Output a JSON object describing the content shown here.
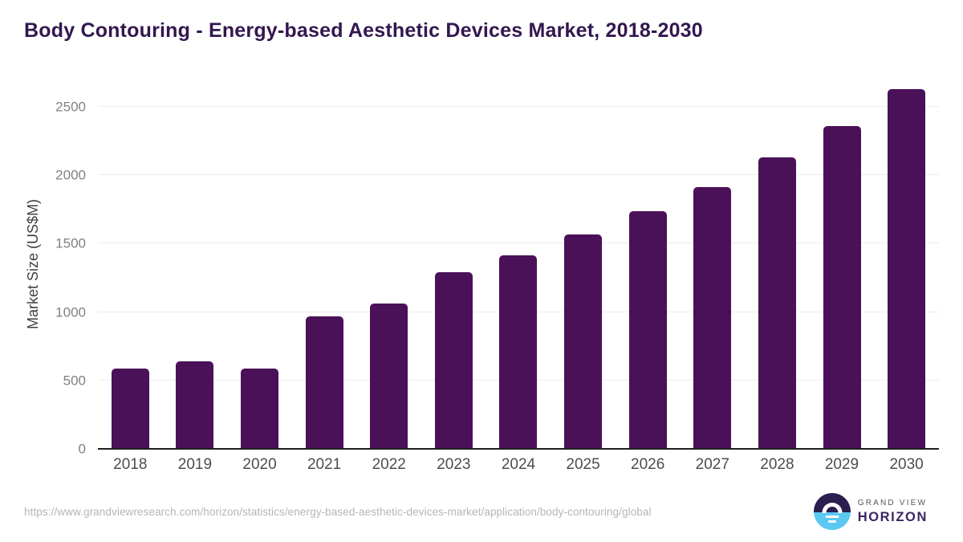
{
  "title": "Body Contouring - Energy-based Aesthetic Devices Market, 2018-2030",
  "chart_data": {
    "type": "bar",
    "categories": [
      "2018",
      "2019",
      "2020",
      "2021",
      "2022",
      "2023",
      "2024",
      "2025",
      "2026",
      "2027",
      "2028",
      "2029",
      "2030"
    ],
    "values": [
      585,
      640,
      585,
      970,
      1065,
      1290,
      1415,
      1565,
      1735,
      1915,
      2130,
      2360,
      2630
    ],
    "title": "Body Contouring - Energy-based Aesthetic Devices Market, 2018-2030",
    "xlabel": "",
    "ylabel": "Market Size (US$M)",
    "ylim": [
      0,
      2700
    ],
    "yticks": [
      0,
      500,
      1000,
      1500,
      2000,
      2500
    ],
    "grid": true,
    "legend": "none",
    "bar_color": "#4a1158"
  },
  "colors": {
    "title_text": "#33174f",
    "bar": "#4a1158",
    "axis_line": "#1f1f1f",
    "gridline": "#ececec",
    "y_tick_label": "#818181",
    "x_tick_label": "#4d4d4d",
    "y_axis_title": "#404040",
    "source_url_text": "#b5b5b5",
    "logo_dark": "#2a1f4e",
    "logo_blue": "#5bc8f2",
    "logo_grand_view_text": "#55555f",
    "logo_horizon_text": "#3a2763"
  },
  "footer": {
    "source_url": "https://www.grandviewresearch.com/horizon/statistics/energy-based-aesthetic-devices-market/application/body-contouring/global",
    "logo_line1": "GRAND VIEW",
    "logo_line2": "HORIZON"
  }
}
